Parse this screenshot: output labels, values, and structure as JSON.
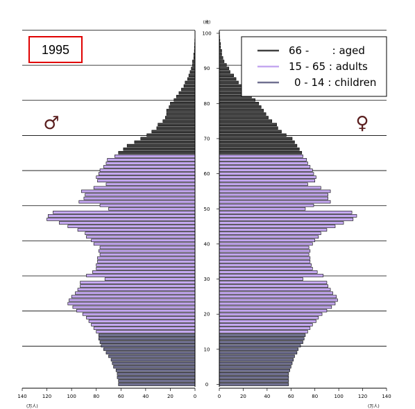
{
  "chart_data": {
    "type": "bar",
    "orientation": "horizontal",
    "year_label": "1995",
    "male_symbol": "♂",
    "female_symbol": "♀",
    "x_unit_left": "(万人)",
    "x_unit_right": "(万人)",
    "y_unit": "(歳)",
    "x_ticks_left": [
      "140",
      "120",
      "100",
      "80",
      "60",
      "40",
      "20",
      "0"
    ],
    "x_ticks_right": [
      "0",
      "20",
      "40",
      "60",
      "80",
      "100",
      "120",
      "140"
    ],
    "y_ticks": [
      "0",
      "10",
      "20",
      "30",
      "40",
      "50",
      "60",
      "70",
      "80",
      "90",
      "100"
    ],
    "xlim": [
      0,
      140
    ],
    "ylim": [
      0,
      100
    ],
    "legend": [
      {
        "key": "aged",
        "label": "66 -       : aged",
        "color": "#404040"
      },
      {
        "key": "adults",
        "label": "15 - 65 : adults",
        "color": "#c4a8f0"
      },
      {
        "key": "children",
        "label": "0 - 14 : children",
        "color": "#707090"
      }
    ],
    "colors": {
      "aged": "#404040",
      "adults": "#c4a8f0",
      "children": "#707090",
      "year_box": "#e00000"
    },
    "ages": [
      0,
      1,
      2,
      3,
      4,
      5,
      6,
      7,
      8,
      9,
      10,
      11,
      12,
      13,
      14,
      15,
      16,
      17,
      18,
      19,
      20,
      21,
      22,
      23,
      24,
      25,
      26,
      27,
      28,
      29,
      30,
      31,
      32,
      33,
      34,
      35,
      36,
      37,
      38,
      39,
      40,
      41,
      42,
      43,
      44,
      45,
      46,
      47,
      48,
      49,
      50,
      51,
      52,
      53,
      54,
      55,
      56,
      57,
      58,
      59,
      60,
      61,
      62,
      63,
      64,
      65,
      66,
      67,
      68,
      69,
      70,
      71,
      72,
      73,
      74,
      75,
      76,
      77,
      78,
      79,
      80,
      81,
      82,
      83,
      84,
      85,
      86,
      87,
      88,
      89,
      90,
      91,
      92,
      93,
      94,
      95,
      96,
      97,
      98,
      99,
      100
    ],
    "male": [
      62,
      62,
      63,
      63,
      64,
      66,
      67,
      68,
      70,
      72,
      74,
      76,
      77,
      78,
      78,
      80,
      82,
      84,
      86,
      88,
      91,
      96,
      99,
      103,
      102,
      100,
      97,
      95,
      93,
      93,
      73,
      88,
      83,
      80,
      80,
      79,
      79,
      77,
      78,
      77,
      82,
      84,
      88,
      89,
      95,
      103,
      110,
      120,
      119,
      115,
      70,
      77,
      94,
      90,
      89,
      92,
      82,
      72,
      79,
      80,
      78,
      77,
      74,
      72,
      71,
      65,
      62,
      58,
      55,
      49,
      44,
      39,
      35,
      31,
      30,
      26,
      24,
      23,
      23,
      21,
      20,
      17,
      15,
      13,
      11,
      9,
      8,
      6,
      5,
      4,
      3,
      2,
      2,
      1,
      1,
      0.5,
      0.4,
      0.3,
      0.2,
      0.1,
      0.1
    ],
    "female": [
      58,
      58,
      58,
      58,
      59,
      60,
      61,
      62,
      63,
      65,
      66,
      68,
      70,
      71,
      72,
      74,
      76,
      78,
      81,
      83,
      86,
      90,
      94,
      97,
      99,
      98,
      95,
      93,
      91,
      90,
      70,
      87,
      82,
      78,
      77,
      76,
      76,
      75,
      76,
      75,
      78,
      80,
      83,
      85,
      90,
      97,
      104,
      112,
      115,
      111,
      72,
      79,
      93,
      91,
      91,
      93,
      85,
      74,
      80,
      81,
      79,
      78,
      76,
      74,
      73,
      70,
      69,
      67,
      65,
      63,
      61,
      56,
      52,
      49,
      48,
      44,
      41,
      39,
      37,
      35,
      33,
      30,
      27,
      24,
      21,
      19,
      16,
      14,
      12,
      9,
      8,
      6,
      4,
      3,
      2,
      2,
      1,
      1,
      0.5,
      0.3,
      0.2
    ]
  }
}
